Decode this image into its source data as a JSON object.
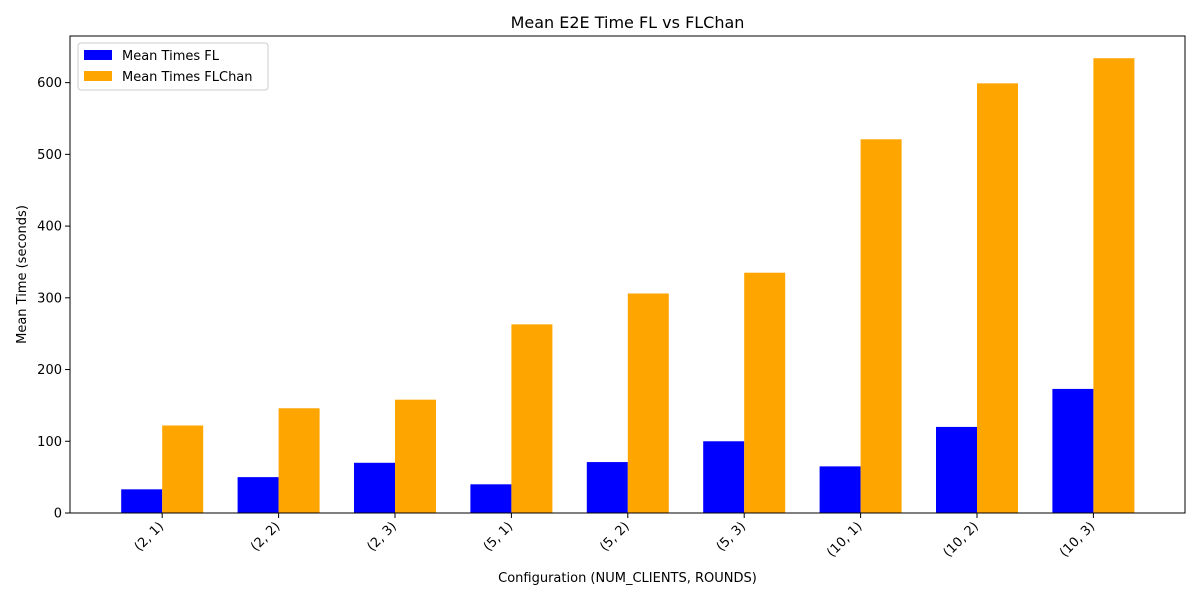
{
  "chart_data": {
    "type": "bar",
    "title": "Mean E2E Time FL vs FLChan",
    "xlabel": "Configuration (NUM_CLIENTS, ROUNDS)",
    "ylabel": "Mean Time (seconds)",
    "ylim": [
      0,
      665
    ],
    "yticks": [
      0,
      100,
      200,
      300,
      400,
      500,
      600
    ],
    "categories": [
      "(2, 1)",
      "(2, 2)",
      "(2, 3)",
      "(5, 1)",
      "(5, 2)",
      "(5, 3)",
      "(10, 1)",
      "(10, 2)",
      "(10, 3)"
    ],
    "series": [
      {
        "name": "Mean Times FL",
        "color": "#0000ff",
        "values": [
          33,
          50,
          70,
          40,
          71,
          100,
          65,
          120,
          173
        ]
      },
      {
        "name": "Mean Times FLChan",
        "color": "#ffa500",
        "values": [
          122,
          146,
          158,
          263,
          306,
          335,
          521,
          599,
          634
        ]
      }
    ],
    "legend": "top-left",
    "grid": false
  }
}
